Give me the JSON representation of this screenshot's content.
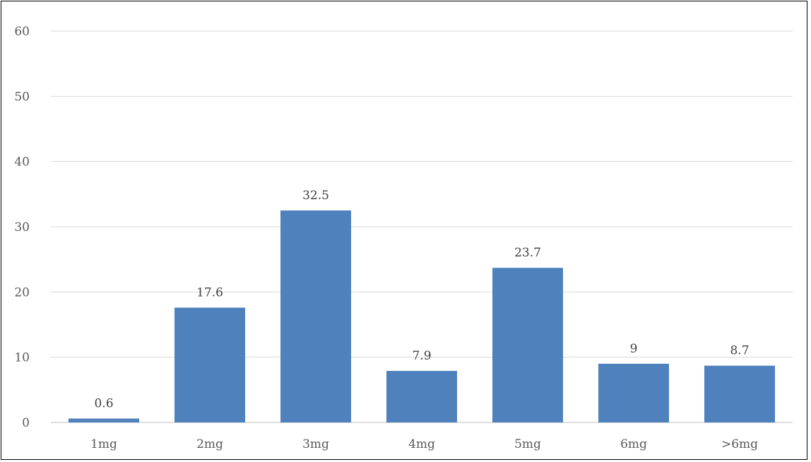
{
  "chart_data": {
    "type": "bar",
    "title": "",
    "xlabel": "",
    "ylabel": "",
    "categories": [
      "1mg",
      "2mg",
      "3mg",
      "4mg",
      "5mg",
      "6mg",
      ">6mg"
    ],
    "values": [
      0.6,
      17.6,
      32.5,
      7.9,
      23.7,
      9,
      8.7
    ],
    "data_labels": [
      "0.6",
      "17.6",
      "32.5",
      "7.9",
      "23.7",
      "9",
      "8.7"
    ],
    "ylim": [
      0,
      60
    ],
    "yticks": [
      0,
      10,
      20,
      30,
      40,
      50,
      60
    ],
    "ytick_labels": [
      "0",
      "10",
      "20",
      "30",
      "40",
      "50",
      "60"
    ],
    "grid": true,
    "legend": "none",
    "bar_color": "#4f81bd"
  }
}
